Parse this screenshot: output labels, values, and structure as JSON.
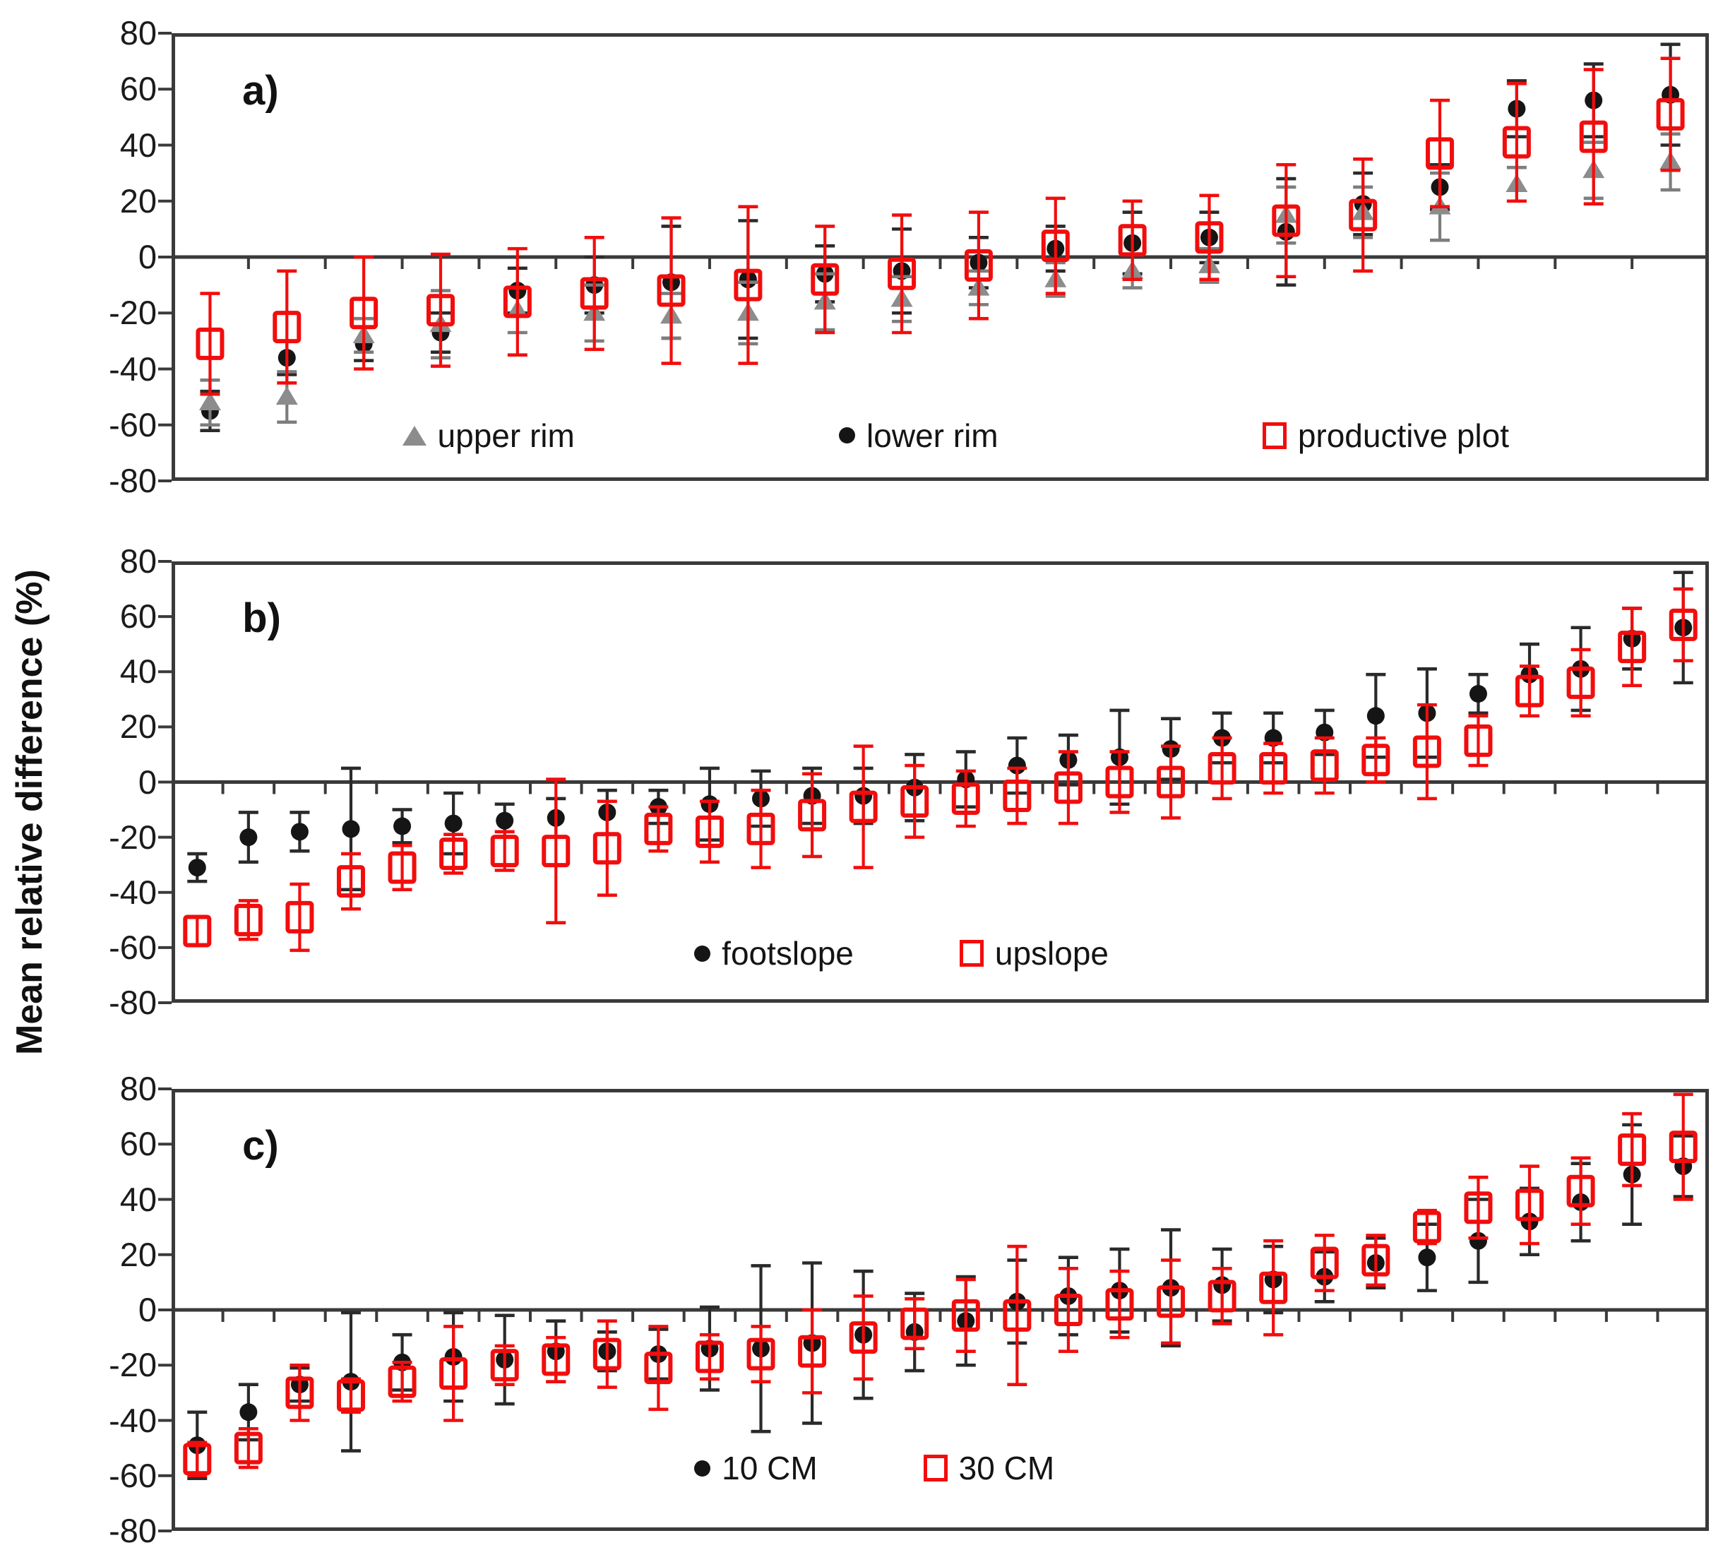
{
  "axis": {
    "ylabel": "Mean relative difference (%)",
    "yticks": [
      80,
      60,
      40,
      20,
      0,
      -20,
      -40,
      -60,
      -80
    ],
    "ylim": [
      -80,
      80
    ],
    "xlabel": ""
  },
  "colors": {
    "black": "#151515",
    "gray": "#8c8c8c",
    "red": "#f20d0d",
    "axis_frame": "#3a3a3a"
  },
  "chart_data": [
    {
      "id": "a",
      "label": "a)",
      "type": "scatter",
      "ylim": [
        -80,
        80
      ],
      "grid": false,
      "legend_position": "inside-bottom",
      "draw_order": [
        1,
        0,
        2
      ],
      "series": [
        {
          "name": "upper rim",
          "marker": "triangle",
          "color": "#8c8c8c",
          "whisker_color": "#7d7d7d",
          "values": [
            -52,
            -50,
            -28,
            -24,
            -19,
            -20,
            -21,
            -20,
            -16,
            -15,
            -11,
            -8,
            -5,
            -3,
            15,
            16,
            18,
            26,
            31,
            34
          ],
          "err": [
            8,
            9,
            6,
            12,
            8,
            10,
            8,
            11,
            10,
            8,
            6,
            6,
            6,
            6,
            10,
            9,
            12,
            6,
            10,
            10
          ]
        },
        {
          "name": "lower rim",
          "marker": "circle",
          "color": "#151515",
          "whisker_color": "#2a2a2a",
          "values": [
            -55,
            -36,
            -31,
            -27,
            -12,
            -10,
            -9,
            -8,
            -6,
            -5,
            -2,
            3,
            5,
            7,
            9,
            19,
            25,
            53,
            56,
            58
          ],
          "err": [
            7,
            6,
            6,
            7,
            8,
            10,
            20,
            21,
            10,
            15,
            9,
            8,
            11,
            9,
            19,
            11,
            8,
            10,
            13,
            18
          ]
        },
        {
          "name": "productive plot",
          "marker": "square-open",
          "color": "#f20d0d",
          "whisker_color": "#f20d0d",
          "values": [
            -31,
            -25,
            -20,
            -19,
            -16,
            -13,
            -12,
            -10,
            -8,
            -6,
            -3,
            4,
            6,
            7,
            13,
            15,
            37,
            41,
            43,
            51
          ],
          "err": [
            18,
            20,
            20,
            20,
            19,
            20,
            26,
            28,
            19,
            21,
            19,
            17,
            14,
            15,
            20,
            20,
            19,
            21,
            24,
            20
          ]
        }
      ],
      "legend": [
        {
          "label": "upper rim",
          "marker": "triangle",
          "color": "#8c8c8c"
        },
        {
          "label": "lower rim",
          "marker": "circle",
          "color": "#151515"
        },
        {
          "label": "productive plot",
          "marker": "square-open",
          "color": "#f20d0d"
        }
      ]
    },
    {
      "id": "b",
      "label": "b)",
      "type": "scatter",
      "ylim": [
        -80,
        80
      ],
      "grid": false,
      "legend_position": "inside-bottom",
      "draw_order": [
        0,
        1
      ],
      "series": [
        {
          "name": "footslope",
          "marker": "circle",
          "color": "#151515",
          "whisker_color": "#2a2a2a",
          "values": [
            -31,
            -20,
            -18,
            -17,
            -16,
            -15,
            -14,
            -13,
            -11,
            -9,
            -8,
            -6,
            -5,
            -5,
            -2,
            1,
            6,
            8,
            9,
            12,
            16,
            16,
            18,
            24,
            25,
            32,
            39,
            41,
            52,
            56
          ],
          "err": [
            5,
            9,
            7,
            22,
            6,
            11,
            6,
            7,
            8,
            6,
            13,
            10,
            10,
            10,
            12,
            10,
            10,
            9,
            17,
            11,
            9,
            9,
            8,
            15,
            16,
            7,
            11,
            15,
            11,
            20
          ]
        },
        {
          "name": "upslope",
          "marker": "square-open",
          "color": "#f20d0d",
          "whisker_color": "#f20d0d",
          "values": [
            -54,
            -50,
            -49,
            -36,
            -31,
            -26,
            -25,
            -25,
            -24,
            -17,
            -18,
            -17,
            -12,
            -9,
            -7,
            -6,
            -5,
            -2,
            0,
            0,
            5,
            5,
            6,
            8,
            11,
            15,
            33,
            36,
            49,
            57
          ],
          "err": [
            5,
            7,
            12,
            10,
            8,
            7,
            7,
            26,
            17,
            8,
            11,
            14,
            15,
            22,
            13,
            10,
            10,
            13,
            11,
            13,
            11,
            9,
            10,
            8,
            17,
            9,
            9,
            12,
            14,
            13
          ]
        }
      ],
      "legend": [
        {
          "label": "footslope",
          "marker": "circle",
          "color": "#151515"
        },
        {
          "label": "upslope",
          "marker": "square-open",
          "color": "#f20d0d"
        }
      ]
    },
    {
      "id": "c",
      "label": "c)",
      "type": "scatter",
      "ylim": [
        -80,
        80
      ],
      "grid": false,
      "legend_position": "inside-bottom",
      "draw_order": [
        0,
        1
      ],
      "series": [
        {
          "name": "10 CM",
          "marker": "circle",
          "color": "#151515",
          "whisker_color": "#2a2a2a",
          "values": [
            -49,
            -37,
            -27,
            -26,
            -19,
            -17,
            -18,
            -15,
            -15,
            -16,
            -14,
            -14,
            -12,
            -9,
            -8,
            -4,
            3,
            5,
            7,
            8,
            9,
            11,
            12,
            17,
            19,
            25,
            32,
            39,
            49,
            52
          ],
          "err": [
            12,
            10,
            6,
            25,
            10,
            16,
            16,
            11,
            7,
            9,
            15,
            30,
            29,
            23,
            14,
            16,
            15,
            14,
            15,
            21,
            13,
            12,
            9,
            9,
            12,
            15,
            12,
            14,
            18,
            11
          ]
        },
        {
          "name": "30 CM",
          "marker": "square-open",
          "color": "#f20d0d",
          "whisker_color": "#f20d0d",
          "values": [
            -54,
            -50,
            -30,
            -31,
            -26,
            -23,
            -20,
            -18,
            -16,
            -21,
            -17,
            -16,
            -15,
            -10,
            -5,
            -2,
            -2,
            0,
            2,
            3,
            5,
            8,
            17,
            18,
            30,
            37,
            38,
            43,
            58,
            59
          ],
          "err": [
            6,
            7,
            10,
            6,
            7,
            17,
            7,
            8,
            12,
            15,
            8,
            10,
            15,
            15,
            9,
            13,
            25,
            15,
            12,
            15,
            10,
            17,
            10,
            9,
            6,
            11,
            14,
            12,
            13,
            19
          ]
        }
      ],
      "legend": [
        {
          "label": "10 CM",
          "marker": "circle",
          "color": "#151515"
        },
        {
          "label": "30 CM",
          "marker": "square-open",
          "color": "#f20d0d"
        }
      ]
    }
  ]
}
